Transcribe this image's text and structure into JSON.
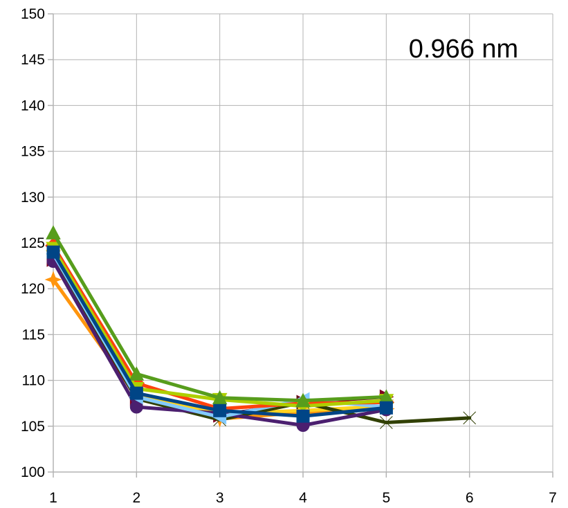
{
  "chart_data": {
    "type": "line",
    "title": "",
    "xlabel": "",
    "ylabel": "",
    "annotation": "0.966 nm",
    "xlim": [
      1,
      7
    ],
    "ylim": [
      100,
      150
    ],
    "x_ticks": [
      1,
      2,
      3,
      4,
      5,
      6,
      7
    ],
    "y_ticks": [
      100,
      105,
      110,
      115,
      120,
      125,
      130,
      135,
      140,
      145,
      150
    ],
    "grid": true,
    "legend": "none",
    "series": [
      {
        "color": "#ff950e",
        "marker": "star4",
        "x": [
          1,
          2,
          3,
          4,
          5
        ],
        "y": [
          121,
          108.3,
          105.8,
          106.5,
          106.9
        ]
      },
      {
        "color": "#7e0021",
        "marker": "triangle-right",
        "x": [
          1,
          2,
          3,
          4,
          5
        ],
        "y": [
          123.2,
          108,
          106.2,
          107.6,
          108.2
        ]
      },
      {
        "color": "#ffd320",
        "marker": "triangle-down",
        "x": [
          1,
          2,
          3,
          4,
          5
        ],
        "y": [
          123.5,
          108.5,
          106.4,
          106.7,
          107.2
        ]
      },
      {
        "color": "#314004",
        "marker": "bowtie",
        "x": [
          1,
          2,
          3,
          4,
          5,
          6
        ],
        "y": [
          123.7,
          108,
          105.7,
          107.6,
          105.4,
          105.9
        ]
      },
      {
        "color": "#4b1f6f",
        "marker": "circle",
        "x": [
          1,
          2,
          3,
          4,
          5
        ],
        "y": [
          123,
          107.1,
          106.4,
          105.1,
          106.8
        ]
      },
      {
        "color": "#83caff",
        "marker": "triangle-left",
        "x": [
          1,
          2,
          3,
          4,
          5
        ],
        "y": [
          123.8,
          108.2,
          106,
          107.9,
          107.1
        ]
      },
      {
        "color": "#ff420e",
        "marker": "diamond",
        "x": [
          1,
          2,
          3,
          4,
          5
        ],
        "y": [
          124.7,
          109.7,
          106.9,
          107.5,
          107.6
        ]
      },
      {
        "color": "#aecf00",
        "marker": "triangle-down",
        "x": [
          1,
          2,
          3,
          4,
          5
        ],
        "y": [
          124.4,
          109.1,
          107.9,
          107.2,
          107.8
        ]
      },
      {
        "color": "#579d1c",
        "marker": "triangle-up",
        "x": [
          1,
          2,
          3,
          4,
          5
        ],
        "y": [
          126.1,
          110.7,
          108.1,
          107.8,
          108.2
        ]
      },
      {
        "color": "#004586",
        "marker": "square",
        "x": [
          1,
          2,
          3,
          4,
          5
        ],
        "y": [
          124,
          108.6,
          106.7,
          106.1,
          107
        ]
      }
    ]
  }
}
